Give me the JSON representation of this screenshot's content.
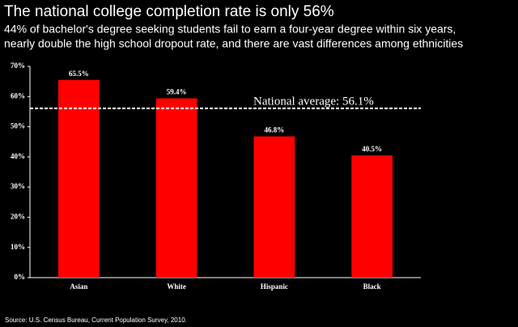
{
  "chart_data": {
    "type": "bar",
    "title": "The national college completion rate is only 56%",
    "subtitle": [
      "44% of bachelor's degree seeking students fail to earn a four-year degree within six years,",
      "nearly double the high school dropout rate, and there are vast differences among ethnicities"
    ],
    "categories": [
      "Asian",
      "White",
      "Hispanic",
      "Black"
    ],
    "values": [
      65.5,
      59.4,
      46.8,
      40.5
    ],
    "value_labels": [
      "65.5%",
      "59.4%",
      "46.8%",
      "40.5%"
    ],
    "color": "#ff0000",
    "ylim": [
      0,
      70
    ],
    "yticks": [
      {
        "value": 0,
        "label": "0%"
      },
      {
        "value": 10,
        "label": "10%"
      },
      {
        "value": 20,
        "label": "20%"
      },
      {
        "value": 30,
        "label": "30%"
      },
      {
        "value": 40,
        "label": "40%"
      },
      {
        "value": 50,
        "label": "50%"
      },
      {
        "value": 60,
        "label": "60%"
      },
      {
        "value": 70,
        "label": "70%"
      }
    ],
    "reference_line": {
      "value": 56.1,
      "label": "National average: 56.1%"
    },
    "source": "Source: U.S. Census Bureau, Current Population Survey, 2010."
  }
}
